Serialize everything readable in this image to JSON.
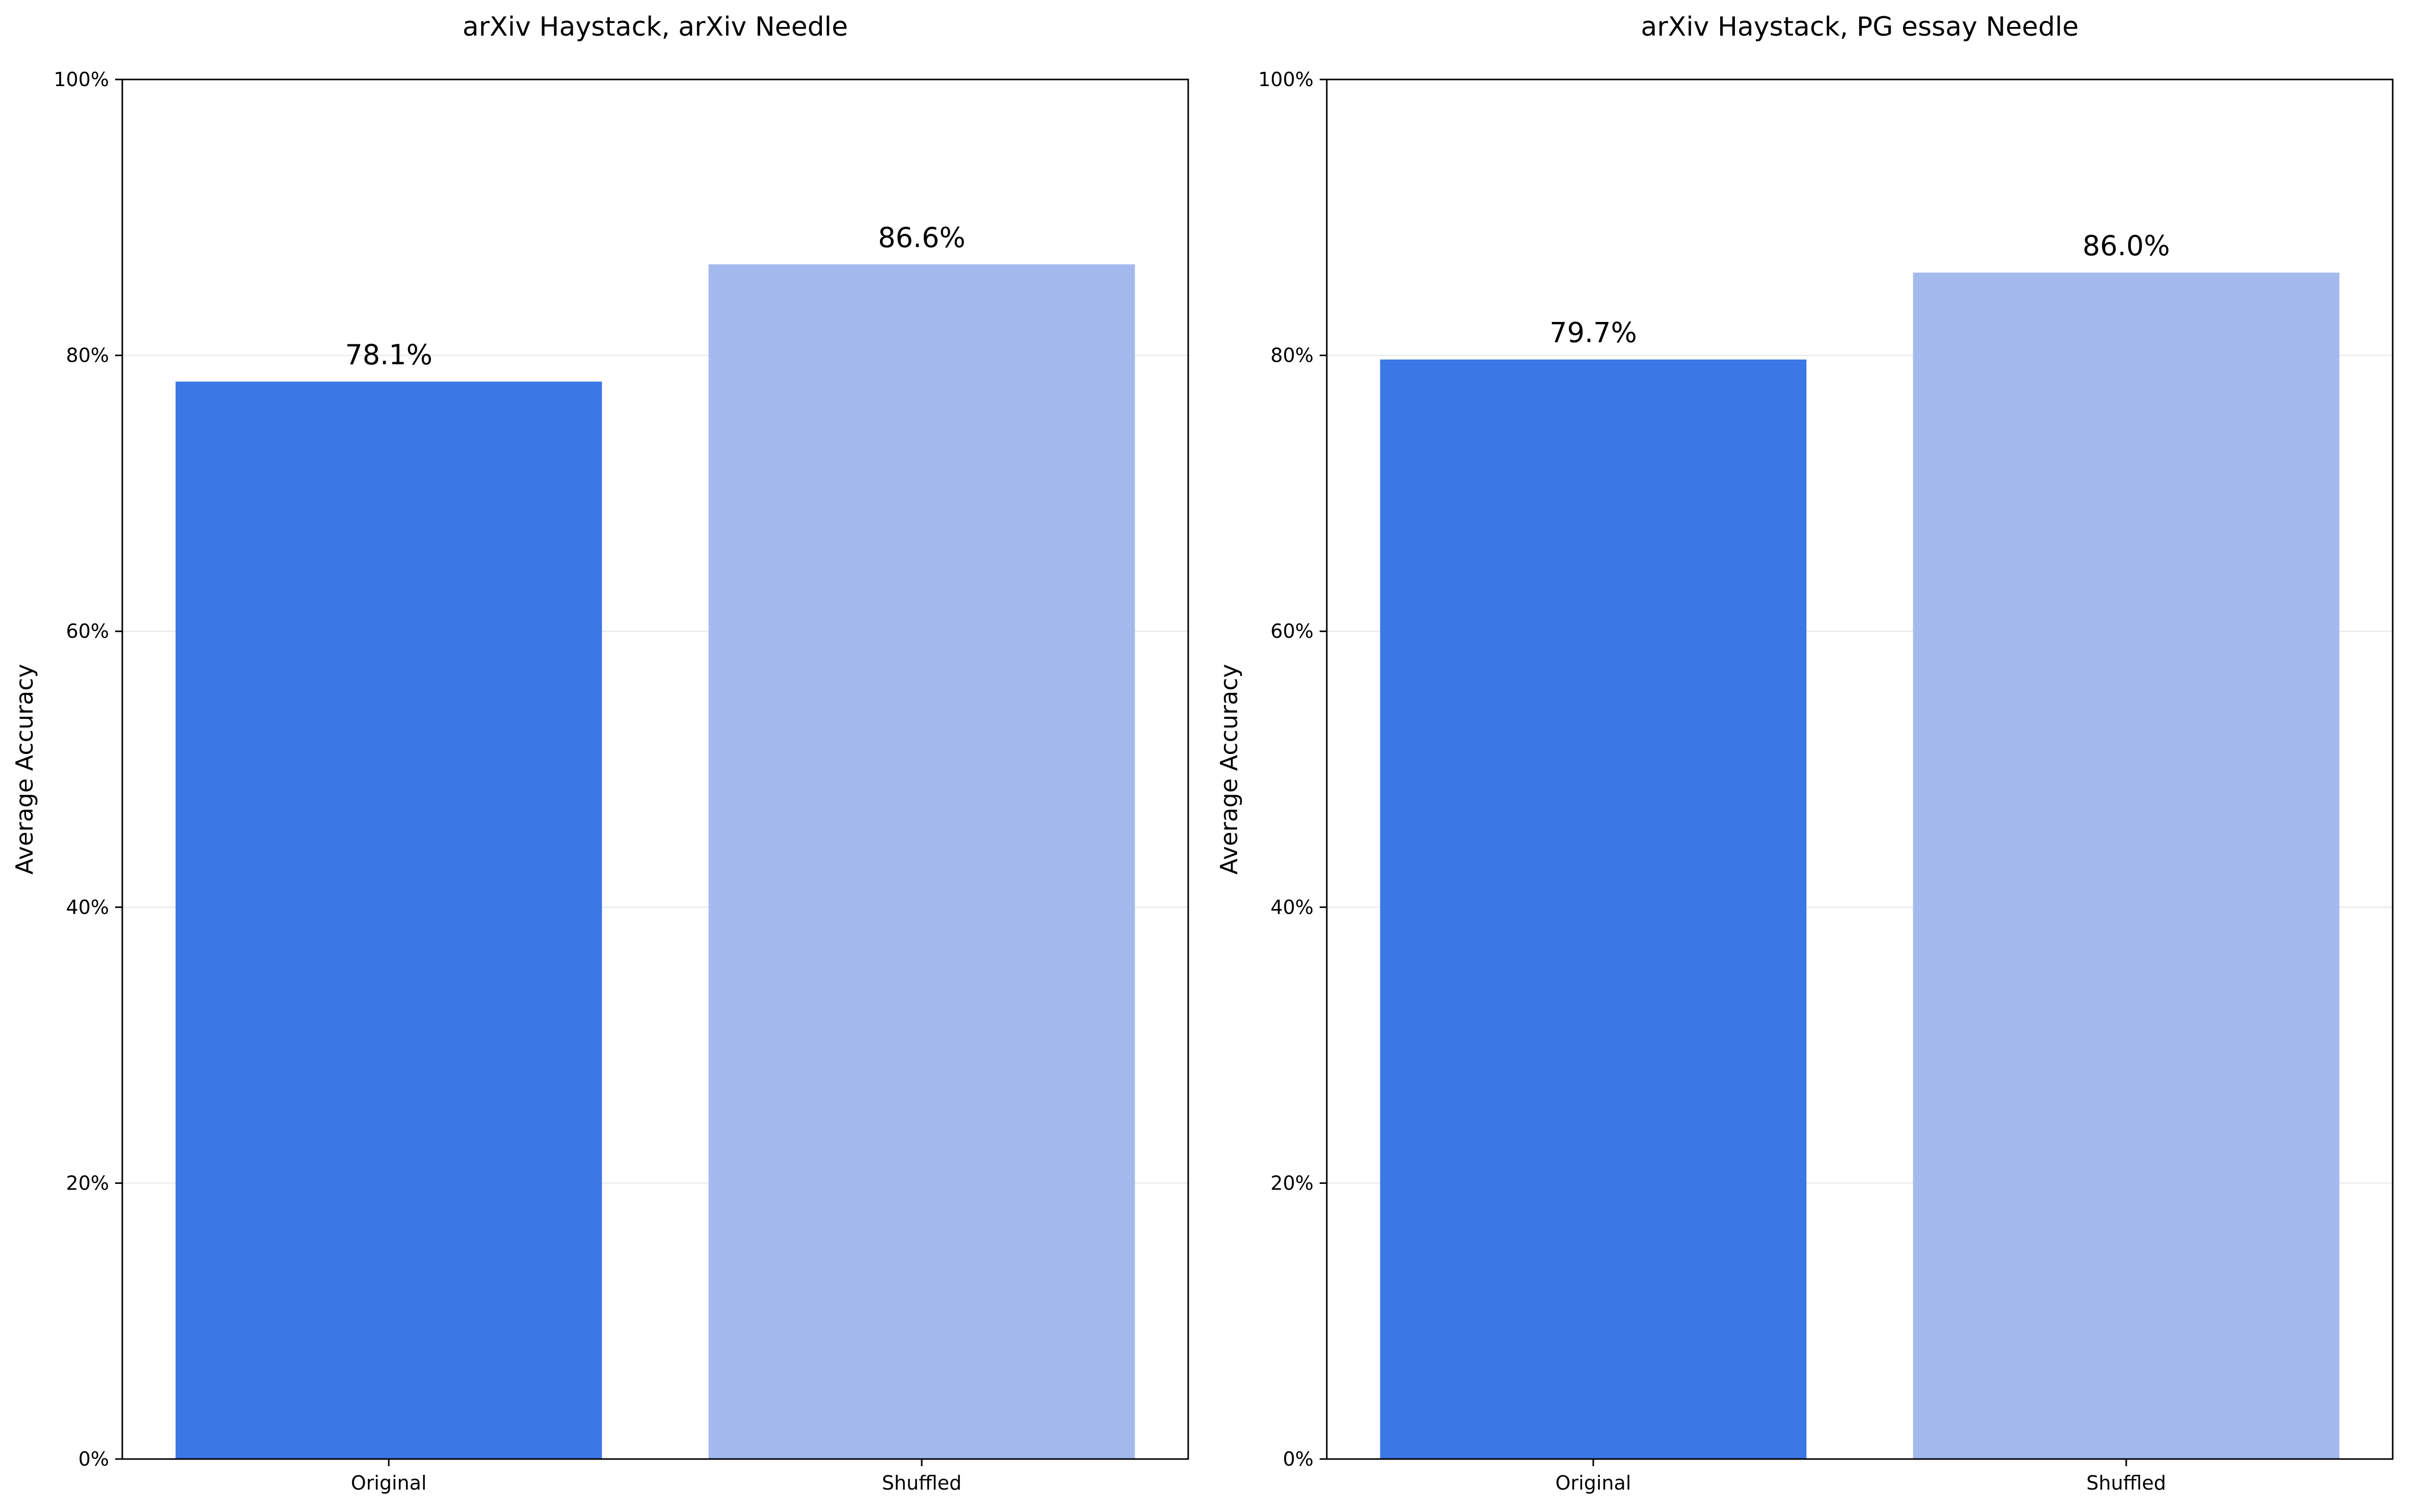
{
  "chart_data": [
    {
      "type": "bar",
      "title": "arXiv Haystack, arXiv Needle",
      "xlabel": "",
      "ylabel": "Average Accuracy",
      "categories": [
        "Original",
        "Shuffled"
      ],
      "values": [
        78.1,
        86.6
      ],
      "data_labels": [
        "78.1%",
        "86.6%"
      ],
      "ylim": [
        0,
        100
      ],
      "yticks": [
        0,
        20,
        40,
        60,
        80,
        100
      ],
      "ytick_labels": [
        "0%",
        "20%",
        "40%",
        "60%",
        "80%",
        "100%"
      ],
      "colors": [
        "#3b77e5",
        "#a4baee"
      ],
      "grid": "y"
    },
    {
      "type": "bar",
      "title": "arXiv Haystack, PG essay Needle",
      "xlabel": "",
      "ylabel": "Average Accuracy",
      "categories": [
        "Original",
        "Shuffled"
      ],
      "values": [
        79.7,
        86.0
      ],
      "data_labels": [
        "79.7%",
        "86.0%"
      ],
      "ylim": [
        0,
        100
      ],
      "yticks": [
        0,
        20,
        40,
        60,
        80,
        100
      ],
      "ytick_labels": [
        "0%",
        "20%",
        "40%",
        "60%",
        "80%",
        "100%"
      ],
      "colors": [
        "#3b77e5",
        "#a4baee"
      ],
      "grid": "y"
    }
  ]
}
